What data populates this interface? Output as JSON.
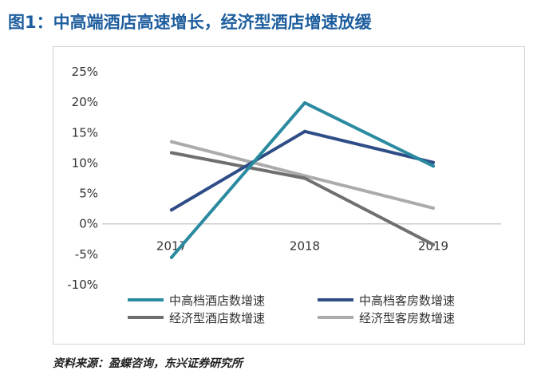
{
  "figure": {
    "title": "图1：中高端酒店高速增长，经济型酒店增速放缓",
    "source": "资料来源：盈蝶咨询，东兴证券研究所"
  },
  "chart_data": {
    "type": "line",
    "title": "图1：中高端酒店高速增长，经济型酒店增速放缓",
    "categories": [
      "2017",
      "2018",
      "2019"
    ],
    "ylim": [
      -0.1,
      0.25
    ],
    "yticks": [
      0.25,
      0.2,
      0.15,
      0.1,
      0.05,
      0,
      -0.05,
      -0.1
    ],
    "ytick_labels": [
      "25%",
      "20%",
      "15%",
      "10%",
      "5%",
      "0%",
      "-5%",
      "-10%"
    ],
    "grid": false,
    "legend_placement": "bottom",
    "series": [
      {
        "name": "中高档酒店数增速",
        "values": [
          -0.055,
          0.199,
          0.095
        ],
        "color": "#2a8a9f"
      },
      {
        "name": "中高档客房数增速",
        "values": [
          0.023,
          0.152,
          0.101
        ],
        "color": "#2e4d87"
      },
      {
        "name": "经济型酒店数增速",
        "values": [
          0.117,
          0.075,
          -0.034
        ],
        "color": "#6f6f6f"
      },
      {
        "name": "经济型客房数增速",
        "values": [
          0.135,
          0.079,
          0.026
        ],
        "color": "#ababab"
      }
    ]
  }
}
